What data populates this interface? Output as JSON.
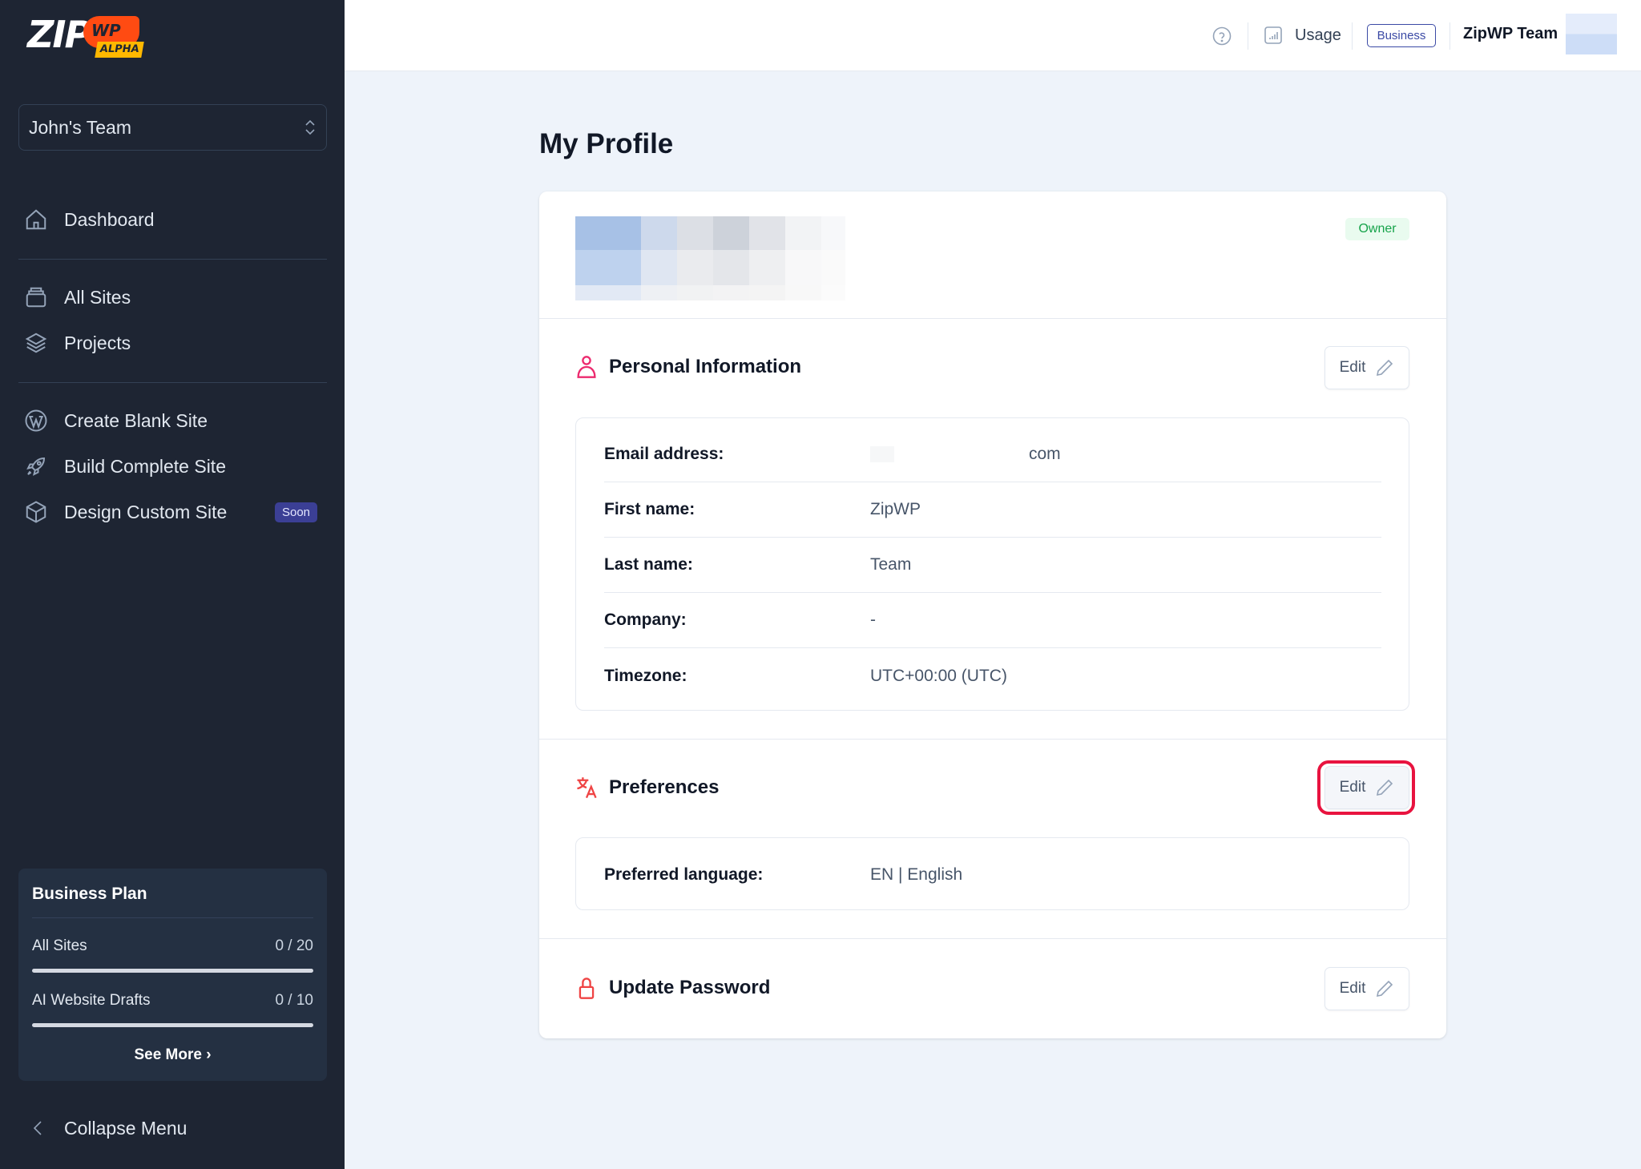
{
  "logo": {
    "text": "ZIP",
    "badge": "WP",
    "tag": "ALPHA"
  },
  "sidebar": {
    "team_selector": "John's Team",
    "items": [
      {
        "label": "Dashboard",
        "icon": "home-icon"
      },
      {
        "label": "All Sites",
        "icon": "stack-icon"
      },
      {
        "label": "Projects",
        "icon": "layers-icon"
      },
      {
        "label": "Create Blank Site",
        "icon": "wordpress-icon"
      },
      {
        "label": "Build Complete Site",
        "icon": "rocket-icon"
      },
      {
        "label": "Design Custom Site",
        "icon": "cube-icon",
        "badge": "Soon"
      }
    ],
    "plan": {
      "title": "Business Plan",
      "usage": [
        {
          "label": "All Sites",
          "value": "0 / 20",
          "fraction": 0
        },
        {
          "label": "AI Website Drafts",
          "value": "0 / 10",
          "fraction": 0
        }
      ],
      "see_more": "See More"
    },
    "collapse": "Collapse Menu"
  },
  "header": {
    "usage": "Usage",
    "plan_badge": "Business",
    "user_name": "ZipWP Team"
  },
  "page": {
    "title": "My Profile",
    "role_badge": "Owner",
    "personal": {
      "title": "Personal Information",
      "edit": "Edit",
      "rows": [
        {
          "label": "Email address:",
          "value": "com"
        },
        {
          "label": "First name:",
          "value": "ZipWP"
        },
        {
          "label": "Last name:",
          "value": "Team"
        },
        {
          "label": "Company:",
          "value": "-"
        },
        {
          "label": "Timezone:",
          "value": "UTC+00:00 (UTC)"
        }
      ]
    },
    "preferences": {
      "title": "Preferences",
      "edit": "Edit",
      "rows": [
        {
          "label": "Preferred language:",
          "value": "EN | English"
        }
      ]
    },
    "password": {
      "title": "Update Password",
      "edit": "Edit"
    }
  },
  "colors": {
    "sidebar_bg": "#1e2533",
    "accent": "#3b4aa5",
    "highlight": "#e8133f",
    "owner_green": "#16a34a"
  }
}
